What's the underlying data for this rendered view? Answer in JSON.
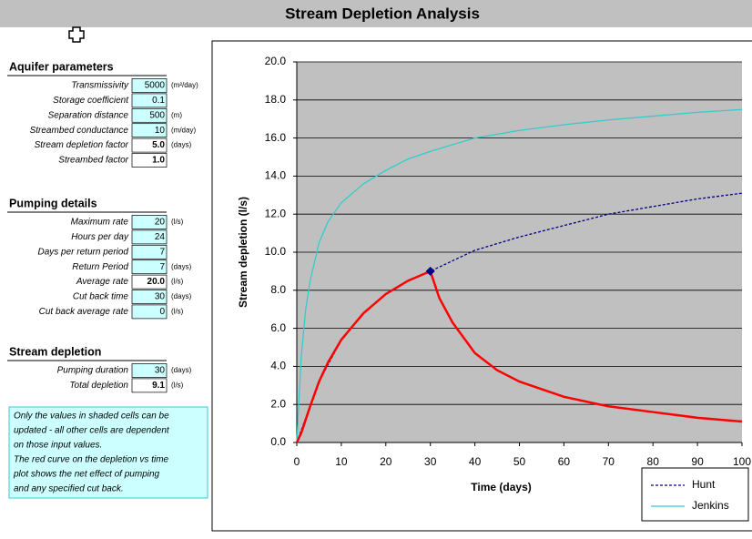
{
  "header": {
    "title": "Stream Depletion Analysis"
  },
  "sections": [
    {
      "title": "Aquifer parameters",
      "rows": [
        {
          "label": "Transmissivity",
          "value": "5000",
          "unit": "(m²/day)",
          "shaded": true
        },
        {
          "label": "Storage coefficient",
          "value": "0.1",
          "shaded": true
        },
        {
          "label": "Separation distance",
          "value": "500",
          "unit": "(m)",
          "shaded": true
        },
        {
          "label": "Streambed conductance",
          "value": "10",
          "unit": "(m/day)",
          "shaded": true
        },
        {
          "label": "Stream depletion factor",
          "value": "5.0",
          "unit": "(days)",
          "shaded": false
        },
        {
          "label": "Streambed factor",
          "value": "1.0",
          "shaded": false
        }
      ]
    },
    {
      "title": "Pumping details",
      "rows": [
        {
          "label": "Maximum rate",
          "value": "20",
          "unit": "(l/s)",
          "shaded": true
        },
        {
          "label": "Hours per day",
          "value": "24",
          "shaded": true
        },
        {
          "label": "Days per return period",
          "value": "7",
          "shaded": true
        },
        {
          "label": "Return Period",
          "value": "7",
          "unit": "(days)",
          "shaded": true
        },
        {
          "label": "Average rate",
          "value": "20.0",
          "unit": "(l/s)",
          "shaded": false
        },
        {
          "label": "Cut back time",
          "value": "30",
          "unit": "(days)",
          "shaded": true
        },
        {
          "label": "Cut back average rate",
          "value": "0",
          "unit": "(l/s)",
          "shaded": true
        }
      ]
    },
    {
      "title": "Stream depletion",
      "rows": [
        {
          "label": "Pumping duration",
          "value": "30",
          "unit": "(days)",
          "shaded": true
        },
        {
          "label": "Total depletion",
          "value": "9.1",
          "unit": "(l/s)",
          "shaded": false
        }
      ]
    }
  ],
  "note": {
    "lines": [
      "Only the values in shaded cells can be",
      "updated - all other cells are dependent",
      "on those input values.",
      "The red curve on the depletion vs time",
      "plot shows the net effect of pumping",
      "and any specified cut back."
    ]
  },
  "chart_data": {
    "type": "line",
    "xlabel": "Time (days)",
    "ylabel": "Stream depletion (l/s)",
    "xlim": [
      0,
      100
    ],
    "ylim": [
      0,
      20
    ],
    "xticks": [
      0,
      10,
      20,
      30,
      40,
      50,
      60,
      70,
      80,
      90,
      100
    ],
    "yticks": [
      {
        "value": 0,
        "label": "0.0"
      },
      {
        "value": 2,
        "label": "2.0"
      },
      {
        "value": 4,
        "label": "4.0"
      },
      {
        "value": 6,
        "label": "6.0"
      },
      {
        "value": 8,
        "label": "8.0"
      },
      {
        "value": 10,
        "label": "10.0"
      },
      {
        "value": 12,
        "label": "12.0"
      },
      {
        "value": 14,
        "label": "14.0"
      },
      {
        "value": 16,
        "label": "16.0"
      },
      {
        "value": 18,
        "label": "18.0"
      },
      {
        "value": 20,
        "label": "20.0"
      }
    ],
    "grid": true,
    "plot_background": "#c0c0c0",
    "legend": "bottom-right",
    "series": [
      {
        "name": "Hunt",
        "color": "#000080",
        "dash": "dashed",
        "x": [
          0,
          5,
          10,
          15,
          20,
          25,
          30,
          40,
          50,
          60,
          70,
          80,
          90,
          100
        ],
        "values": [
          0,
          3.2,
          5.4,
          6.8,
          7.8,
          8.5,
          9.0,
          10.1,
          10.8,
          11.4,
          12.0,
          12.4,
          12.8,
          13.1
        ]
      },
      {
        "name": "Jenkins",
        "color": "#33cccc",
        "x": [
          0,
          1,
          2,
          3,
          5,
          7,
          10,
          15,
          20,
          25,
          30,
          40,
          50,
          60,
          70,
          80,
          90,
          100
        ],
        "values": [
          0,
          4.5,
          7.0,
          8.5,
          10.5,
          11.6,
          12.6,
          13.6,
          14.3,
          14.9,
          15.3,
          16.0,
          16.4,
          16.7,
          16.95,
          17.15,
          17.35,
          17.5
        ]
      },
      {
        "color": "#ff0000",
        "x": [
          0,
          1,
          2,
          3,
          5,
          7,
          10,
          15,
          20,
          25,
          30,
          32,
          35,
          40,
          45,
          50,
          60,
          70,
          80,
          90,
          100
        ],
        "values": [
          0,
          0.5,
          1.2,
          1.9,
          3.2,
          4.2,
          5.4,
          6.8,
          7.8,
          8.5,
          9.0,
          7.6,
          6.3,
          4.7,
          3.8,
          3.2,
          2.4,
          1.9,
          1.6,
          1.3,
          1.1
        ]
      },
      {
        "color": "#000080",
        "marker": "diamond",
        "x": [
          30
        ],
        "values": [
          9.0
        ]
      }
    ]
  }
}
